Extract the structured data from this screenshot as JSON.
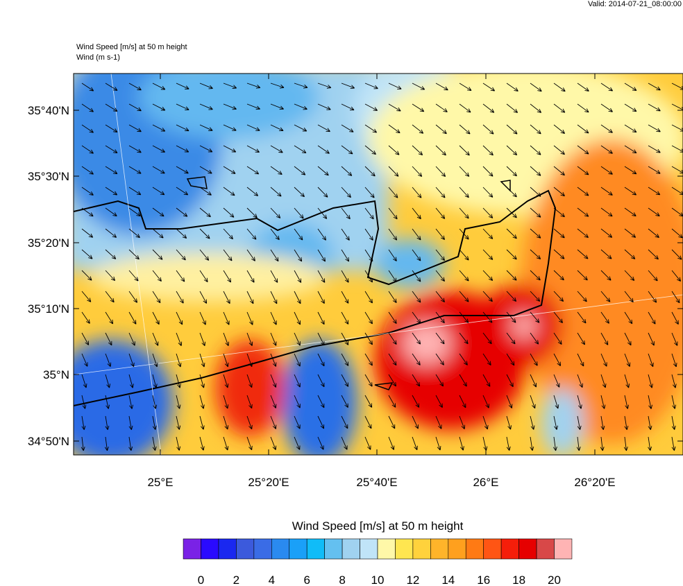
{
  "header": {
    "valid": "Valid: 2014-07-21_08:00:00",
    "title": "Wind Speed [m/s] at 50 m height",
    "subtitle": "Wind   (m s-1)"
  },
  "map": {
    "lat_labels": [
      "35°40'N",
      "35°30'N",
      "35°20'N",
      "35°10'N",
      "35°N",
      "34°50'N"
    ],
    "lon_labels": [
      "25°E",
      "25°20'E",
      "25°40'E",
      "26°E",
      "26°20'E"
    ]
  },
  "colorbar": {
    "title": "Wind Speed [m/s] at 50 m height",
    "levels": [
      0,
      1,
      2,
      3,
      4,
      5,
      6,
      7,
      8,
      9,
      10,
      11,
      12,
      13,
      14,
      15,
      16,
      17,
      18,
      19,
      20
    ],
    "ticks": [
      0,
      2,
      4,
      6,
      8,
      10,
      12,
      14,
      16,
      18,
      20
    ],
    "colors": [
      "#7a22e6",
      "#2a0aff",
      "#1a28f0",
      "#3c5adc",
      "#3a6ce6",
      "#2a8af0",
      "#1aa0f8",
      "#10bcf8",
      "#64c0f0",
      "#a0d2f0",
      "#c0e4f8",
      "#fff8a8",
      "#ffe650",
      "#ffd23c",
      "#ffb42a",
      "#ffa01e",
      "#ff7a14",
      "#ff5514",
      "#f51e0a",
      "#e60000",
      "#d84848",
      "#ffb4b4"
    ]
  }
}
